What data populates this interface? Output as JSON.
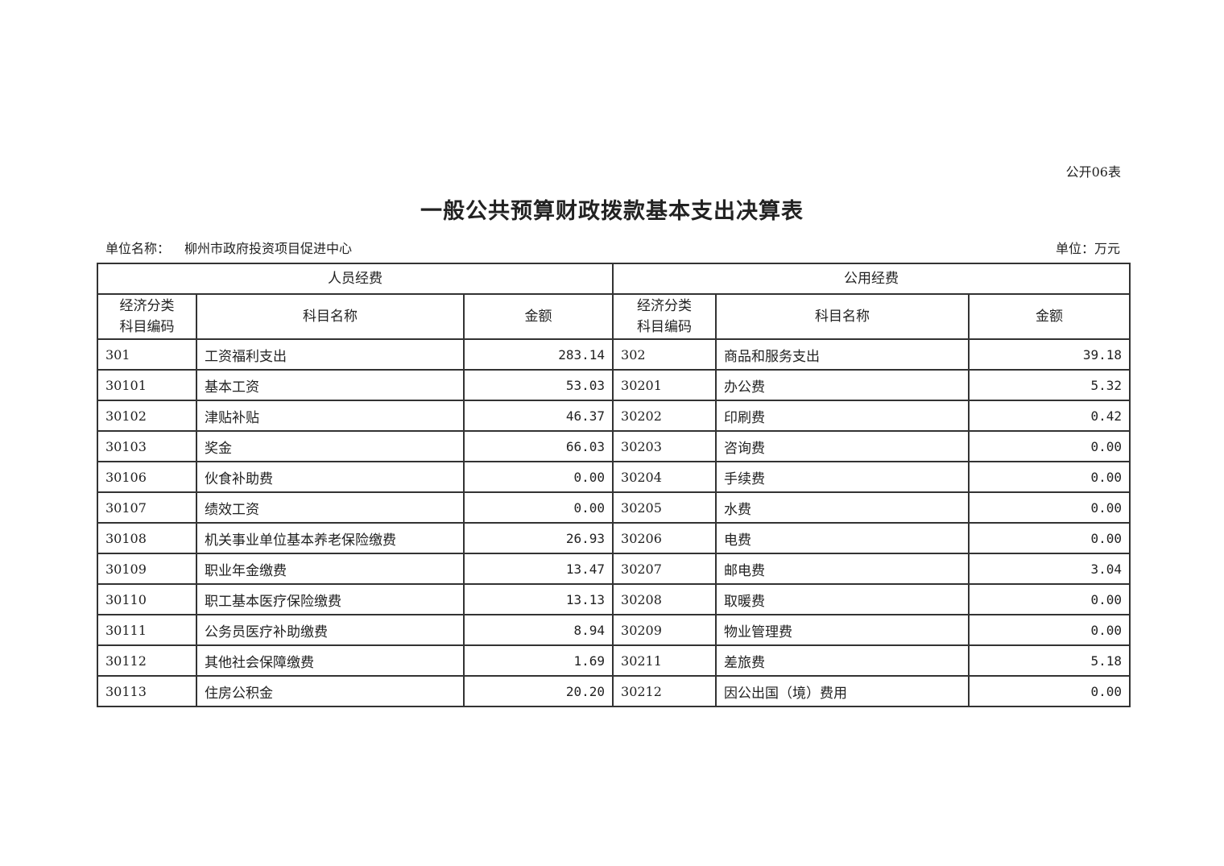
{
  "form_no": "公开06表",
  "title": "一般公共预算财政拨款基本支出决算表",
  "unit_label": "单位名称：",
  "unit_name": "柳州市政府投资项目促进中心",
  "currency_unit": "单位：万元",
  "groups": [
    "人员经费",
    "公用经费"
  ],
  "headers": {
    "code": "经济分类科目编码",
    "code_line1": "经济分类",
    "code_line2": "科目编码",
    "name": "科目名称",
    "amount": "金额"
  },
  "rows": [
    {
      "pc": "301",
      "pn": "工资福利支出",
      "pa": "283.14",
      "gc": "302",
      "gn": "商品和服务支出",
      "ga": "39.18"
    },
    {
      "pc": "30101",
      "pn": "基本工资",
      "pa": "53.03",
      "gc": "30201",
      "gn": "办公费",
      "ga": "5.32"
    },
    {
      "pc": "30102",
      "pn": "津贴补贴",
      "pa": "46.37",
      "gc": "30202",
      "gn": "印刷费",
      "ga": "0.42"
    },
    {
      "pc": "30103",
      "pn": "奖金",
      "pa": "66.03",
      "gc": "30203",
      "gn": "咨询费",
      "ga": "0.00"
    },
    {
      "pc": "30106",
      "pn": "伙食补助费",
      "pa": "0.00",
      "gc": "30204",
      "gn": "手续费",
      "ga": "0.00"
    },
    {
      "pc": "30107",
      "pn": "绩效工资",
      "pa": "0.00",
      "gc": "30205",
      "gn": "水费",
      "ga": "0.00"
    },
    {
      "pc": "30108",
      "pn": "机关事业单位基本养老保险缴费",
      "pa": "26.93",
      "gc": "30206",
      "gn": "电费",
      "ga": "0.00"
    },
    {
      "pc": "30109",
      "pn": "职业年金缴费",
      "pa": "13.47",
      "gc": "30207",
      "gn": "邮电费",
      "ga": "3.04"
    },
    {
      "pc": "30110",
      "pn": "职工基本医疗保险缴费",
      "pa": "13.13",
      "gc": "30208",
      "gn": "取暖费",
      "ga": "0.00"
    },
    {
      "pc": "30111",
      "pn": "公务员医疗补助缴费",
      "pa": "8.94",
      "gc": "30209",
      "gn": "物业管理费",
      "ga": "0.00"
    },
    {
      "pc": "30112",
      "pn": "其他社会保障缴费",
      "pa": "1.69",
      "gc": "30211",
      "gn": "差旅费",
      "ga": "5.18"
    },
    {
      "pc": "30113",
      "pn": "住房公积金",
      "pa": "20.20",
      "gc": "30212",
      "gn": "因公出国（境）费用",
      "ga": "0.00"
    }
  ]
}
